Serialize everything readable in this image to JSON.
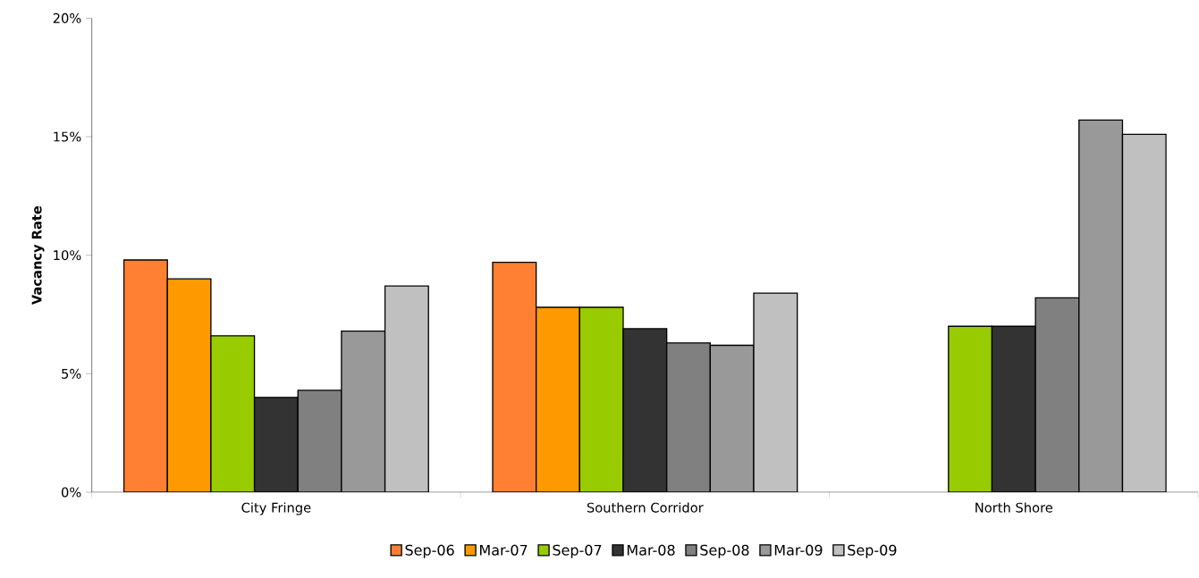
{
  "chart_data": {
    "type": "bar",
    "ylabel": "Vacancy Rate",
    "categories": [
      "City Fringe",
      "Southern Corridor",
      "North Shore"
    ],
    "series": [
      {
        "name": "Sep-06",
        "color": "#ff8033",
        "values": [
          9.8,
          9.7,
          null
        ]
      },
      {
        "name": "Mar-07",
        "color": "#ff9900",
        "values": [
          9.0,
          7.8,
          null
        ]
      },
      {
        "name": "Sep-07",
        "color": "#99cc00",
        "values": [
          6.6,
          7.8,
          7.0
        ]
      },
      {
        "name": "Mar-08",
        "color": "#333333",
        "values": [
          4.0,
          6.9,
          7.0
        ]
      },
      {
        "name": "Sep-08",
        "color": "#808080",
        "values": [
          4.3,
          6.3,
          8.2
        ]
      },
      {
        "name": "Mar-09",
        "color": "#999999",
        "values": [
          6.8,
          6.2,
          15.7
        ]
      },
      {
        "name": "Sep-09",
        "color": "#c0c0c0",
        "values": [
          8.7,
          8.4,
          15.1
        ]
      }
    ],
    "ylim": [
      0,
      20
    ],
    "yticks": [
      {
        "value": 0,
        "label": "0%"
      },
      {
        "value": 5,
        "label": "5%"
      },
      {
        "value": 10,
        "label": "10%"
      },
      {
        "value": 15,
        "label": "15%"
      },
      {
        "value": 20,
        "label": "20%"
      }
    ],
    "grid": false,
    "legend": "bottom"
  }
}
